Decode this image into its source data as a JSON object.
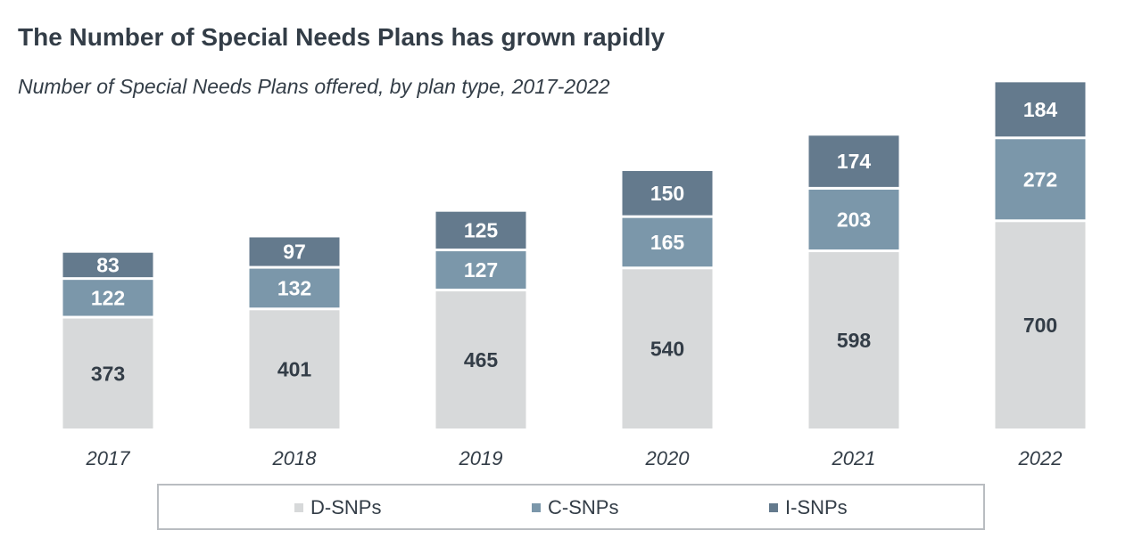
{
  "title": "The Number of Special Needs Plans has grown rapidly",
  "subtitle": "Number of Special Needs Plans offered, by plan type, 2017-2022",
  "chart_data": {
    "type": "bar",
    "stacked": true,
    "categories": [
      "2017",
      "2018",
      "2019",
      "2020",
      "2021",
      "2022"
    ],
    "series": [
      {
        "name": "D-SNPs",
        "color": "#d7d9da",
        "values": [
          373,
          401,
          465,
          540,
          598,
          700
        ]
      },
      {
        "name": "C-SNPs",
        "color": "#7b97aa",
        "values": [
          122,
          132,
          127,
          165,
          203,
          272
        ]
      },
      {
        "name": "I-SNPs",
        "color": "#647a8d",
        "values": [
          83,
          97,
          125,
          150,
          174,
          184
        ]
      }
    ],
    "title": "The Number of Special Needs Plans has grown rapidly",
    "subtitle": "Number of Special Needs Plans offered, by plan type, 2017-2022",
    "xlabel": "",
    "ylabel": "",
    "data_labels": true,
    "grid": false,
    "legend": "bottom",
    "label_color": "#333d47"
  }
}
